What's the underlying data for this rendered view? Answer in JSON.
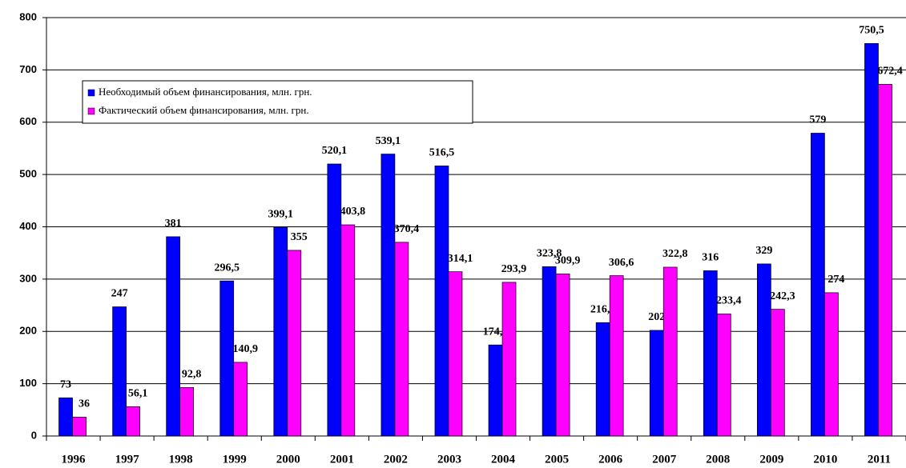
{
  "chart_data": {
    "type": "bar",
    "categories": [
      "1996",
      "1997",
      "1998",
      "1999",
      "2000",
      "2001",
      "2002",
      "2003",
      "2004",
      "2005",
      "2006",
      "2007",
      "2008",
      "2009",
      "2010",
      "2011"
    ],
    "series": [
      {
        "name": "Необходимый объем финансирования, млн. грн.",
        "color": "#0000ff",
        "values": [
          73,
          247,
          381,
          296.5,
          399.1,
          520.1,
          539.1,
          516.5,
          174.1,
          323.8,
          216.8,
          202,
          316,
          329,
          579,
          750.5
        ],
        "value_labels": [
          "73",
          "247",
          "381",
          "296,5",
          "399,1",
          "520,1",
          "539,1",
          "516,5",
          "174,1",
          "323,8",
          "216,8",
          "202",
          "316",
          "329",
          "579",
          "750,5"
        ]
      },
      {
        "name": "Фактический объем финансирования, млн. грн.",
        "color": "#ff00ff",
        "values": [
          36,
          56.1,
          92.8,
          140.9,
          355,
          403.8,
          370.4,
          314.1,
          293.9,
          309.9,
          306.6,
          322.8,
          233.4,
          242.3,
          274,
          672.4
        ],
        "value_labels": [
          "36",
          "56,1",
          "92,8",
          "140,9",
          "355",
          "403,8",
          "370,4",
          "314,1",
          "293,9",
          "309,9",
          "306,6",
          "322,8",
          "233,4",
          "242,3",
          "274",
          "672,4"
        ]
      }
    ],
    "ylim": [
      0,
      800
    ],
    "yticks": [
      0,
      100,
      200,
      300,
      400,
      500,
      600,
      700,
      800
    ],
    "grid": true,
    "legend": "upper left"
  }
}
